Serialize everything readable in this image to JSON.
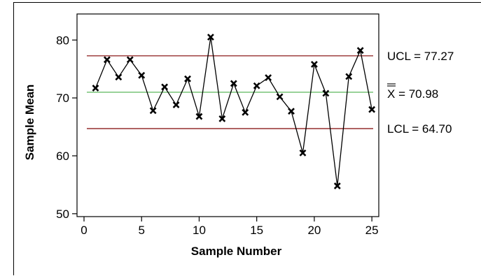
{
  "chart_data": {
    "type": "line",
    "title": "",
    "xlabel": "Sample Number",
    "ylabel": "Sample Mean",
    "xlim": [
      0,
      25.6
    ],
    "ylim": [
      49.5,
      84.5
    ],
    "x_ticks": [
      0,
      5,
      10,
      15,
      20,
      25
    ],
    "x_tick_labels": [
      "0",
      "5",
      "10",
      "15",
      "20",
      "25"
    ],
    "y_ticks": [
      50,
      60,
      70,
      80
    ],
    "y_tick_labels": [
      "50",
      "60",
      "70",
      "80"
    ],
    "grid": false,
    "legend": "none",
    "series": [
      {
        "x": [
          1,
          2,
          3,
          4,
          5,
          6,
          7,
          8,
          9,
          10,
          11,
          12,
          13,
          14,
          15,
          16,
          17,
          18,
          19,
          20,
          21,
          22,
          23,
          24,
          25
        ],
        "values": [
          71.7,
          76.6,
          73.6,
          76.6,
          73.9,
          67.8,
          71.9,
          68.8,
          73.3,
          66.8,
          80.5,
          66.4,
          72.5,
          67.5,
          72.1,
          73.5,
          70.2,
          67.7,
          60.5,
          75.8,
          70.8,
          54.8,
          73.7,
          78.2,
          68.0
        ],
        "marker": "x",
        "color": "#000000"
      }
    ],
    "reference_lines": [
      {
        "label": "UCL",
        "text": "UCL = 77.27",
        "value": 77.27,
        "color": "#8b1a1a"
      },
      {
        "label": "Xbarbar",
        "text_symbol": "X",
        "text_value": " = 70.98",
        "value": 70.98,
        "color": "#5cb85c"
      },
      {
        "label": "LCL",
        "text": "LCL = 64.70",
        "value": 64.7,
        "color": "#8b1a1a"
      }
    ]
  }
}
